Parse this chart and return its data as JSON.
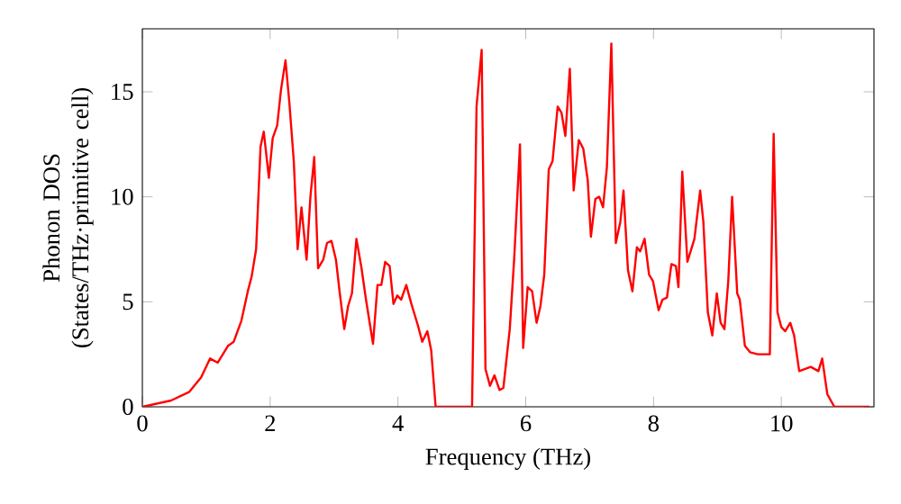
{
  "chart_data": {
    "type": "line",
    "xlabel": "Frequency (THz)",
    "ylabel": "Phonon DOS (States/THz·primitive cell)",
    "xlim": [
      0,
      11.45
    ],
    "ylim": [
      0,
      18
    ],
    "xticks": [
      0,
      2,
      4,
      6,
      8,
      10
    ],
    "yticks": [
      0,
      5,
      10,
      15
    ],
    "grid": false,
    "marker": "none",
    "line_style": "solid",
    "series": [
      {
        "color": "#ff0000",
        "x": [
          0,
          0.45,
          0.73,
          0.92,
          1.06,
          1.18,
          1.34,
          1.43,
          1.55,
          1.65,
          1.71,
          1.78,
          1.85,
          1.9,
          1.98,
          2.04,
          2.11,
          2.17,
          2.24,
          2.3,
          2.37,
          2.43,
          2.49,
          2.57,
          2.63,
          2.69,
          2.75,
          2.83,
          2.89,
          2.96,
          3.03,
          3.09,
          3.16,
          3.22,
          3.28,
          3.35,
          3.43,
          3.5,
          3.61,
          3.68,
          3.74,
          3.8,
          3.87,
          3.93,
          3.99,
          4.05,
          4.13,
          4.21,
          4.31,
          4.38,
          4.46,
          4.52,
          4.59,
          5.16,
          5.23,
          5.31,
          5.37,
          5.44,
          5.51,
          5.59,
          5.65,
          5.75,
          5.82,
          5.91,
          5.96,
          6.03,
          6.1,
          6.17,
          6.23,
          6.29,
          6.36,
          6.42,
          6.5,
          6.56,
          6.62,
          6.69,
          6.75,
          6.83,
          6.9,
          6.97,
          7.02,
          7.09,
          7.15,
          7.21,
          7.27,
          7.34,
          7.41,
          7.48,
          7.53,
          7.6,
          7.67,
          7.74,
          7.79,
          7.86,
          7.93,
          7.99,
          8.08,
          8.14,
          8.21,
          8.28,
          8.35,
          8.39,
          8.45,
          8.53,
          8.64,
          8.73,
          8.78,
          8.85,
          8.92,
          8.99,
          9.05,
          9.11,
          9.17,
          9.23,
          9.31,
          9.35,
          9.43,
          9.51,
          9.63,
          9.82,
          9.88,
          9.94,
          10.0,
          10.06,
          10.14,
          10.2,
          10.28,
          10.37,
          10.46,
          10.58,
          10.64,
          10.72,
          10.83,
          11.38
        ],
        "values": [
          0,
          0.3,
          0.7,
          1.4,
          2.3,
          2.1,
          2.9,
          3.1,
          4.1,
          5.5,
          6.2,
          7.5,
          12.4,
          13.1,
          10.9,
          12.8,
          13.4,
          15.1,
          16.5,
          14.5,
          11.7,
          7.5,
          9.5,
          7.0,
          10.0,
          11.9,
          6.6,
          7.0,
          7.8,
          7.9,
          7.0,
          5.4,
          3.7,
          4.8,
          5.4,
          8.0,
          6.6,
          5.1,
          3.0,
          5.8,
          5.8,
          6.9,
          6.7,
          4.9,
          5.3,
          5.1,
          5.8,
          4.9,
          3.9,
          3.1,
          3.6,
          2.7,
          0,
          0,
          14.3,
          17.0,
          1.8,
          1.0,
          1.5,
          0.8,
          0.9,
          3.7,
          7.1,
          12.5,
          2.8,
          5.7,
          5.5,
          4.0,
          4.8,
          6.3,
          11.3,
          11.7,
          14.3,
          14.0,
          12.9,
          16.1,
          10.3,
          12.7,
          12.3,
          10.8,
          8.1,
          9.9,
          10.0,
          9.5,
          11.4,
          17.3,
          7.8,
          8.8,
          10.3,
          6.5,
          5.5,
          7.6,
          7.4,
          8.0,
          6.3,
          6.0,
          4.6,
          5.1,
          5.2,
          6.8,
          6.7,
          5.7,
          11.2,
          6.9,
          8.0,
          10.3,
          8.8,
          4.5,
          3.4,
          5.4,
          4.0,
          3.7,
          6.0,
          10.0,
          5.4,
          5.1,
          2.9,
          2.6,
          2.5,
          2.5,
          13.0,
          4.5,
          3.8,
          3.6,
          4.0,
          3.4,
          1.7,
          1.8,
          1.9,
          1.7,
          2.3,
          0.6,
          0,
          0
        ]
      }
    ]
  }
}
